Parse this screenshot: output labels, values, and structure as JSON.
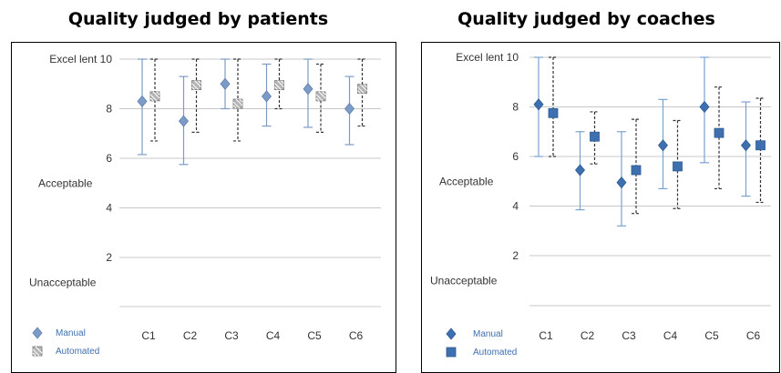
{
  "charts": [
    {
      "title": "Quality judged by patients",
      "type": "errorbar",
      "categories": [
        "C1",
        "C2",
        "C3",
        "C4",
        "C5",
        "C6"
      ],
      "y_ticks": [
        "2",
        "4",
        "6",
        "8",
        "Excel lent 10"
      ],
      "y_labels": {
        "acceptable": "Acceptable",
        "unacceptable": "Unacceptable"
      },
      "series": [
        {
          "name": "Manual",
          "marker": "diamond",
          "color": "#7C9CC7",
          "values": [
            8.3,
            7.5,
            9.0,
            8.5,
            8.8,
            8.0
          ],
          "err_low": [
            6.15,
            5.75,
            8.0,
            7.3,
            7.25,
            6.55
          ],
          "err_high": [
            10.0,
            9.3,
            10.0,
            9.8,
            10.0,
            9.3
          ]
        },
        {
          "name": "Automated",
          "marker": "square-hatched",
          "color": "#A7A7A7",
          "values": [
            8.5,
            8.95,
            8.2,
            8.95,
            8.5,
            8.8
          ],
          "err_low": [
            6.7,
            7.05,
            6.7,
            8.0,
            7.05,
            7.3
          ],
          "err_high": [
            10.0,
            10.0,
            10.0,
            10.0,
            9.8,
            10.0
          ]
        }
      ]
    },
    {
      "title": "Quality judged by coaches",
      "type": "errorbar",
      "categories": [
        "C1",
        "C2",
        "C3",
        "C4",
        "C5",
        "C6"
      ],
      "y_ticks": [
        "2",
        "4",
        "6",
        "8",
        "Excel lent 10"
      ],
      "y_labels": {
        "acceptable": "Acceptable",
        "unacceptable": "Unacceptable"
      },
      "series": [
        {
          "name": "Manual",
          "marker": "diamond",
          "color": "#3E6FAF",
          "values": [
            8.1,
            5.45,
            4.95,
            6.45,
            8.0,
            6.45
          ],
          "err_low": [
            6.0,
            3.85,
            3.2,
            4.7,
            5.75,
            4.4
          ],
          "err_high": [
            10.0,
            7.0,
            7.0,
            8.3,
            10.0,
            8.2
          ]
        },
        {
          "name": "Automated",
          "marker": "square",
          "color": "#3E6FAF",
          "values": [
            7.75,
            6.8,
            5.45,
            5.6,
            6.95,
            6.45
          ],
          "err_low": [
            6.0,
            5.7,
            3.7,
            3.9,
            4.7,
            4.15
          ],
          "err_high": [
            10.0,
            7.8,
            7.5,
            7.45,
            8.8,
            8.35
          ]
        }
      ]
    }
  ]
}
